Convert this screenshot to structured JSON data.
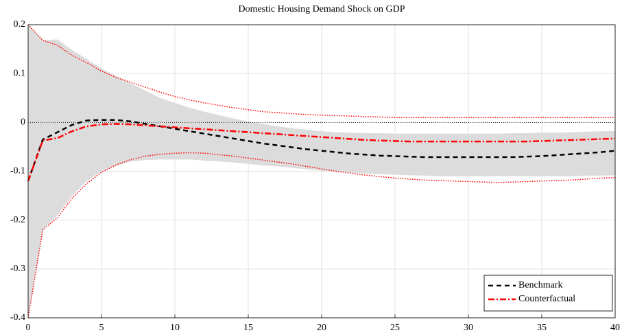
{
  "chart_data": {
    "type": "line",
    "title": "Domestic Housing Demand Shock on GDP",
    "x": [
      0,
      1,
      2,
      3,
      4,
      5,
      6,
      7,
      8,
      9,
      10,
      11,
      12,
      13,
      14,
      15,
      16,
      17,
      18,
      19,
      20,
      21,
      22,
      23,
      24,
      25,
      26,
      27,
      28,
      29,
      30,
      31,
      32,
      33,
      34,
      35,
      36,
      37,
      38,
      39,
      40
    ],
    "band": {
      "color": "#dcdcdc",
      "upper": [
        0.2,
        0.168,
        0.17,
        0.148,
        0.13,
        0.11,
        0.095,
        0.08,
        0.065,
        0.05,
        0.04,
        0.03,
        0.022,
        0.015,
        0.008,
        0.002,
        -0.003,
        -0.008,
        -0.012,
        -0.015,
        -0.018,
        -0.02,
        -0.021,
        -0.022,
        -0.022,
        -0.023,
        -0.023,
        -0.023,
        -0.023,
        -0.023,
        -0.023,
        -0.023,
        -0.023,
        -0.022,
        -0.022,
        -0.021,
        -0.021,
        -0.02,
        -0.019,
        -0.018,
        -0.018
      ],
      "lower": [
        -0.4,
        -0.22,
        -0.19,
        -0.15,
        -0.12,
        -0.1,
        -0.088,
        -0.08,
        -0.077,
        -0.076,
        -0.076,
        -0.076,
        -0.078,
        -0.08,
        -0.082,
        -0.085,
        -0.088,
        -0.09,
        -0.093,
        -0.096,
        -0.099,
        -0.101,
        -0.103,
        -0.105,
        -0.106,
        -0.107,
        -0.108,
        -0.109,
        -0.11,
        -0.11,
        -0.11,
        -0.11,
        -0.11,
        -0.11,
        -0.11,
        -0.11,
        -0.11,
        -0.11,
        -0.109,
        -0.109,
        -0.108
      ]
    },
    "series": [
      {
        "name": "Benchmark",
        "color": "#000000",
        "style": "dashed",
        "values": [
          -0.12,
          -0.035,
          -0.02,
          -0.005,
          0.004,
          0.005,
          0.005,
          0.002,
          -0.003,
          -0.008,
          -0.013,
          -0.018,
          -0.023,
          -0.028,
          -0.033,
          -0.038,
          -0.043,
          -0.047,
          -0.051,
          -0.055,
          -0.058,
          -0.061,
          -0.064,
          -0.066,
          -0.068,
          -0.069,
          -0.07,
          -0.071,
          -0.071,
          -0.071,
          -0.071,
          -0.071,
          -0.071,
          -0.071,
          -0.07,
          -0.069,
          -0.067,
          -0.065,
          -0.063,
          -0.061,
          -0.058
        ]
      },
      {
        "name": "Counterfactual",
        "color": "#ff0000",
        "style": "dashdot",
        "values": [
          -0.12,
          -0.037,
          -0.032,
          -0.018,
          -0.008,
          -0.004,
          -0.003,
          -0.004,
          -0.006,
          -0.008,
          -0.01,
          -0.012,
          -0.014,
          -0.016,
          -0.018,
          -0.02,
          -0.022,
          -0.024,
          -0.026,
          -0.028,
          -0.03,
          -0.032,
          -0.034,
          -0.036,
          -0.037,
          -0.038,
          -0.039,
          -0.039,
          -0.039,
          -0.039,
          -0.039,
          -0.039,
          -0.039,
          -0.039,
          -0.039,
          -0.038,
          -0.037,
          -0.036,
          -0.035,
          -0.034,
          -0.033
        ]
      },
      {
        "color": "#ff0000",
        "style": "dotted",
        "values": [
          0.2,
          0.168,
          0.158,
          0.137,
          0.122,
          0.105,
          0.092,
          0.082,
          0.072,
          0.062,
          0.053,
          0.046,
          0.04,
          0.035,
          0.03,
          0.026,
          0.022,
          0.02,
          0.018,
          0.016,
          0.015,
          0.014,
          0.013,
          0.012,
          0.011,
          0.01,
          0.01,
          0.01,
          0.01,
          0.01,
          0.01,
          0.01,
          0.01,
          0.01,
          0.01,
          0.01,
          0.01,
          0.01,
          0.01,
          0.01,
          0.01
        ]
      },
      {
        "color": "#ff0000",
        "style": "dotted",
        "values": [
          -0.4,
          -0.22,
          -0.195,
          -0.155,
          -0.125,
          -0.102,
          -0.087,
          -0.076,
          -0.069,
          -0.065,
          -0.063,
          -0.062,
          -0.063,
          -0.066,
          -0.069,
          -0.073,
          -0.077,
          -0.081,
          -0.085,
          -0.09,
          -0.095,
          -0.1,
          -0.104,
          -0.108,
          -0.111,
          -0.114,
          -0.116,
          -0.118,
          -0.119,
          -0.12,
          -0.121,
          -0.122,
          -0.123,
          -0.122,
          -0.121,
          -0.12,
          -0.119,
          -0.118,
          -0.116,
          -0.114,
          -0.113
        ]
      }
    ],
    "hline": 0,
    "xlim": [
      0,
      40
    ],
    "xticks": [
      0,
      5,
      10,
      15,
      20,
      25,
      30,
      35,
      40
    ],
    "ylim": [
      -0.4,
      0.2
    ],
    "yticks": [
      -0.4,
      -0.3,
      -0.2,
      -0.1,
      0,
      0.1,
      0.2
    ],
    "grid": true,
    "legend": "lower right"
  }
}
